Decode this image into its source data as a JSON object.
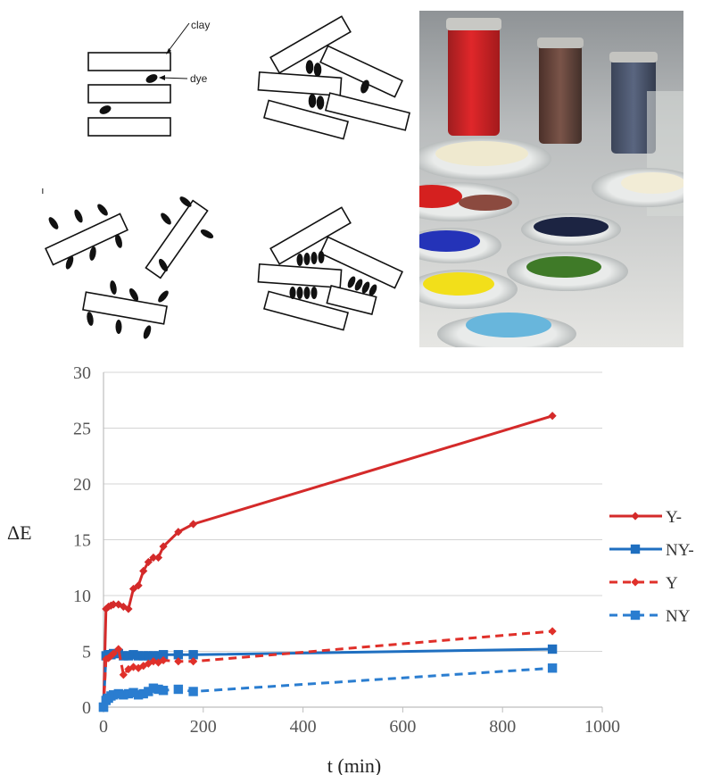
{
  "schematic": {
    "labels": {
      "clay": "clay",
      "dye": "dye"
    }
  },
  "photo": {
    "description_icon": "pigment-samples-photo"
  },
  "chart_data": {
    "type": "line",
    "xlabel": "t (min)",
    "ylabel": "ΔE",
    "xlim": [
      0,
      1000
    ],
    "ylim": [
      0,
      30
    ],
    "xticks": [
      0,
      200,
      400,
      600,
      800,
      1000
    ],
    "yticks": [
      0,
      5,
      10,
      15,
      20,
      25,
      30
    ],
    "grid": "horizontal",
    "legend": "right",
    "series": [
      {
        "name": "Y-",
        "color": "#d42a2a",
        "dash": "solid",
        "marker": "diamond",
        "x": [
          0,
          5,
          10,
          15,
          20,
          30,
          40,
          50,
          60,
          70,
          80,
          90,
          100,
          110,
          120,
          150,
          180,
          900
        ],
        "y": [
          0,
          8.8,
          9.0,
          9.1,
          9.2,
          9.2,
          9.0,
          8.8,
          10.6,
          10.9,
          12.2,
          13.0,
          13.4,
          13.4,
          14.4,
          15.7,
          16.4,
          26.1
        ]
      },
      {
        "name": "NY-",
        "color": "#1f6fc0",
        "dash": "solid",
        "marker": "square",
        "x": [
          0,
          5,
          10,
          15,
          20,
          30,
          40,
          50,
          60,
          70,
          80,
          90,
          100,
          110,
          120,
          150,
          180,
          900
        ],
        "y": [
          0,
          4.6,
          4.7,
          4.7,
          4.8,
          4.8,
          4.6,
          4.6,
          4.7,
          4.6,
          4.6,
          4.6,
          4.6,
          4.6,
          4.7,
          4.7,
          4.7,
          5.2
        ]
      },
      {
        "name": "Y",
        "color": "#e0302a",
        "dash": "dashed",
        "marker": "diamond",
        "x": [
          0,
          5,
          10,
          15,
          20,
          30,
          40,
          50,
          60,
          70,
          80,
          90,
          100,
          110,
          120,
          150,
          180,
          900
        ],
        "y": [
          0,
          4.3,
          4.4,
          4.6,
          4.8,
          5.2,
          2.9,
          3.4,
          3.6,
          3.5,
          3.7,
          3.9,
          4.1,
          4.0,
          4.2,
          4.1,
          4.1,
          6.8
        ]
      },
      {
        "name": "NY",
        "color": "#2a7dd0",
        "dash": "dashed",
        "marker": "square",
        "x": [
          0,
          5,
          10,
          15,
          20,
          30,
          40,
          50,
          60,
          70,
          80,
          90,
          100,
          110,
          120,
          150,
          180,
          900
        ],
        "y": [
          0,
          0.6,
          0.8,
          1.0,
          1.1,
          1.2,
          1.1,
          1.2,
          1.3,
          1.1,
          1.2,
          1.4,
          1.7,
          1.6,
          1.5,
          1.6,
          1.4,
          3.5
        ]
      }
    ]
  }
}
